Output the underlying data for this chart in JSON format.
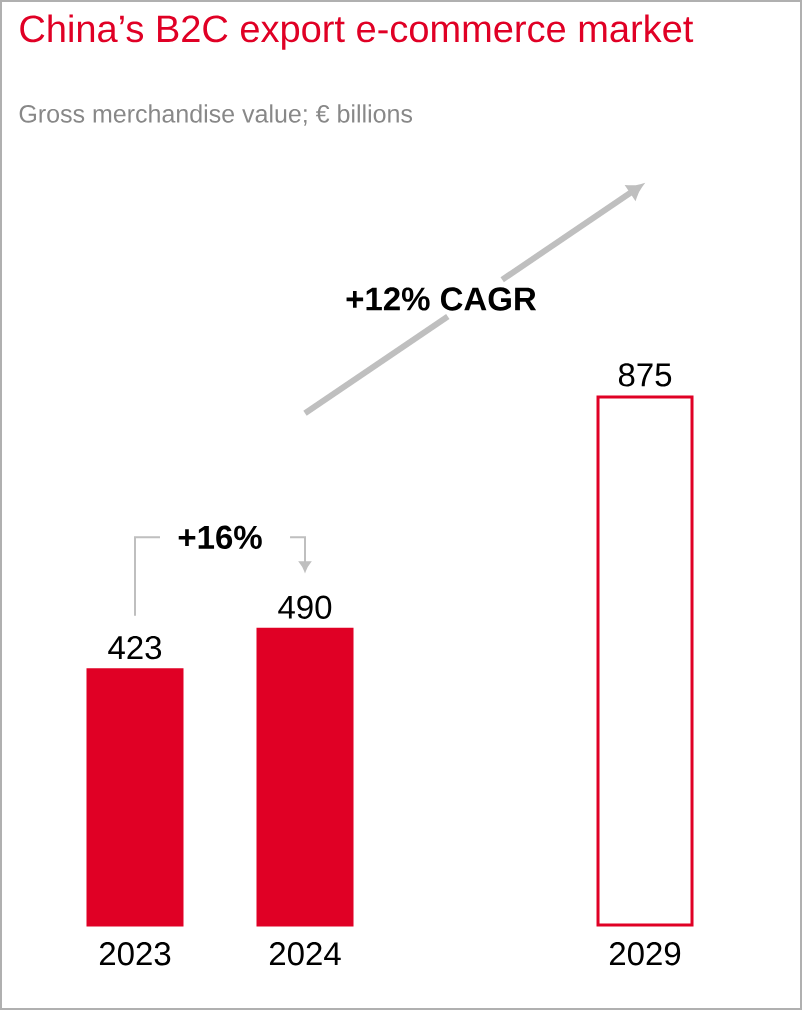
{
  "chart_data": {
    "type": "bar",
    "title": "China’s B2C export e-commerce market",
    "subtitle": "Gross merchandise value; € billions",
    "categories": [
      "2023",
      "2024",
      null,
      "2029"
    ],
    "values": [
      423,
      490,
      null,
      875
    ],
    "color": "#e00025",
    "colors": [
      "#e00025",
      "#e00025",
      null,
      "#ffffff"
    ],
    "data_labels": true,
    "tick_labels": "x",
    "annotations": [
      "+16%",
      "+12% CAGR"
    ]
  }
}
